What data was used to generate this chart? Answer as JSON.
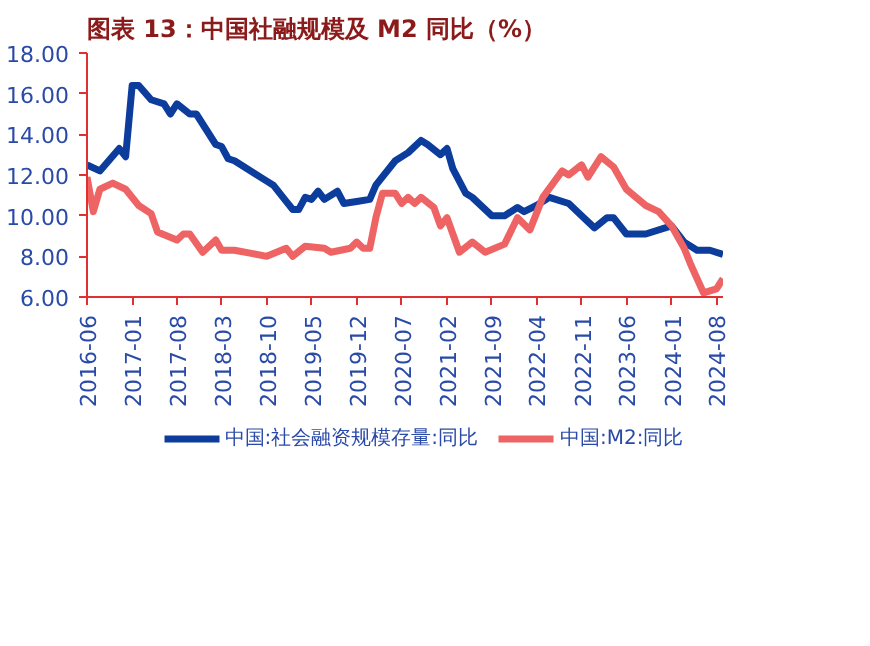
{
  "chart_data": {
    "type": "line",
    "title": "图表 13：中国社融规模及 M2 同比（%）",
    "xlim": [
      "2016-06",
      "2024-09"
    ],
    "xticks": [
      "2016-06",
      "2017-01",
      "2017-08",
      "2018-03",
      "2018-10",
      "2019-05",
      "2019-12",
      "2020-07",
      "2021-02",
      "2021-09",
      "2022-04",
      "2022-11",
      "2023-06",
      "2024-01",
      "2024-08"
    ],
    "ylim": [
      6,
      18
    ],
    "yticks": [
      {
        "value": 6,
        "label": "6.00"
      },
      {
        "value": 8,
        "label": "8.00"
      },
      {
        "value": 10,
        "label": "10.00"
      },
      {
        "value": 12,
        "label": "12.00"
      },
      {
        "value": 14,
        "label": "14.00"
      },
      {
        "value": 16,
        "label": "16.00"
      },
      {
        "value": 18,
        "label": "18.00"
      }
    ],
    "grid": false,
    "legend": "bottom",
    "line_style": "solid",
    "marker": "none",
    "series": [
      {
        "name": "中国:社会融资规模存量:同比",
        "color": "#0c3c9c",
        "x": [
          "2016-06",
          "2016-08",
          "2016-11",
          "2016-12",
          "2017-01",
          "2017-02",
          "2017-04",
          "2017-06",
          "2017-07",
          "2017-08",
          "2017-10",
          "2017-11",
          "2018-02",
          "2018-03",
          "2018-04",
          "2018-05",
          "2018-10",
          "2018-11",
          "2019-01",
          "2019-02",
          "2019-03",
          "2019-04",
          "2019-05",
          "2019-06",
          "2019-07",
          "2019-09",
          "2019-10",
          "2019-12",
          "2020-02",
          "2020-03",
          "2020-06",
          "2020-08",
          "2020-10",
          "2020-11",
          "2021-01",
          "2021-02",
          "2021-03",
          "2021-05",
          "2021-06",
          "2021-09",
          "2021-11",
          "2022-01",
          "2022-02",
          "2022-04",
          "2022-06",
          "2022-09",
          "2022-11",
          "2023-01",
          "2023-03",
          "2023-04",
          "2023-06",
          "2023-09",
          "2024-01",
          "2024-03",
          "2024-05",
          "2024-07",
          "2024-09"
        ],
        "values": [
          12.5,
          12.2,
          13.3,
          12.9,
          16.4,
          16.4,
          15.7,
          15.5,
          15.0,
          15.5,
          15.0,
          15.0,
          13.5,
          13.4,
          12.8,
          12.7,
          11.7,
          11.5,
          10.7,
          10.3,
          10.3,
          10.9,
          10.8,
          11.2,
          10.8,
          11.2,
          10.6,
          10.7,
          10.8,
          11.5,
          12.7,
          13.1,
          13.7,
          13.5,
          13.0,
          13.3,
          12.3,
          11.1,
          10.9,
          10.0,
          10.0,
          10.4,
          10.2,
          10.5,
          10.9,
          10.6,
          10.0,
          9.4,
          9.9,
          9.9,
          9.1,
          9.1,
          9.5,
          8.7,
          8.3,
          8.3,
          8.1
        ]
      },
      {
        "name": "中国:M2:同比",
        "color": "#ee6464",
        "x": [
          "2016-06",
          "2016-07",
          "2016-08",
          "2016-10",
          "2016-12",
          "2017-02",
          "2017-04",
          "2017-05",
          "2017-08",
          "2017-09",
          "2017-10",
          "2017-12",
          "2018-02",
          "2018-03",
          "2018-05",
          "2018-10",
          "2019-01",
          "2019-02",
          "2019-04",
          "2019-07",
          "2019-08",
          "2019-11",
          "2019-12",
          "2020-01",
          "2020-02",
          "2020-03",
          "2020-04",
          "2020-06",
          "2020-07",
          "2020-08",
          "2020-09",
          "2020-10",
          "2020-12",
          "2021-01",
          "2021-02",
          "2021-04",
          "2021-06",
          "2021-08",
          "2021-11",
          "2022-01",
          "2022-03",
          "2022-05",
          "2022-08",
          "2022-09",
          "2022-11",
          "2022-12",
          "2023-02",
          "2023-04",
          "2023-06",
          "2023-09",
          "2023-11",
          "2024-01",
          "2024-03",
          "2024-04",
          "2024-06",
          "2024-07",
          "2024-08",
          "2024-09"
        ],
        "values": [
          11.9,
          10.2,
          11.3,
          11.6,
          11.3,
          10.5,
          10.1,
          9.2,
          8.8,
          9.1,
          9.1,
          8.2,
          8.8,
          8.3,
          8.3,
          8.0,
          8.4,
          8.0,
          8.5,
          8.4,
          8.2,
          8.4,
          8.7,
          8.4,
          8.4,
          9.9,
          11.1,
          11.1,
          10.6,
          10.9,
          10.6,
          10.9,
          10.4,
          9.5,
          9.9,
          8.2,
          8.7,
          8.2,
          8.6,
          9.9,
          9.3,
          10.9,
          12.2,
          12.0,
          12.5,
          11.9,
          12.9,
          12.4,
          11.3,
          10.5,
          10.2,
          9.5,
          8.4,
          7.6,
          6.2,
          6.3,
          6.4,
          6.9
        ]
      }
    ]
  }
}
